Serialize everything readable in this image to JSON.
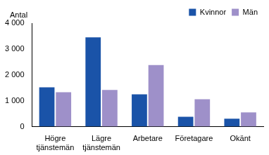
{
  "chart_data": {
    "type": "bar",
    "ylabel": "Antal",
    "categories": [
      "Högre tjänstemän",
      "Lägre tjänstemän",
      "Arbetare",
      "Företagare",
      "Okänt"
    ],
    "series": [
      {
        "name": "Kvinnor",
        "color": "#1a53a8",
        "values": [
          1520,
          3450,
          1250,
          380,
          310
        ]
      },
      {
        "name": "Män",
        "color": "#9e90c9",
        "values": [
          1330,
          1420,
          2380,
          1060,
          550
        ]
      }
    ],
    "ylim": [
      0,
      4000
    ],
    "yticks": [
      0,
      {
        "value": 1000,
        "label": "1 000"
      },
      {
        "value": 2000,
        "label": "2 000"
      },
      {
        "value": 3000,
        "label": "3 000"
      },
      {
        "value": 4000,
        "label": "4 000"
      }
    ],
    "grid": false,
    "legend": "upper right"
  }
}
